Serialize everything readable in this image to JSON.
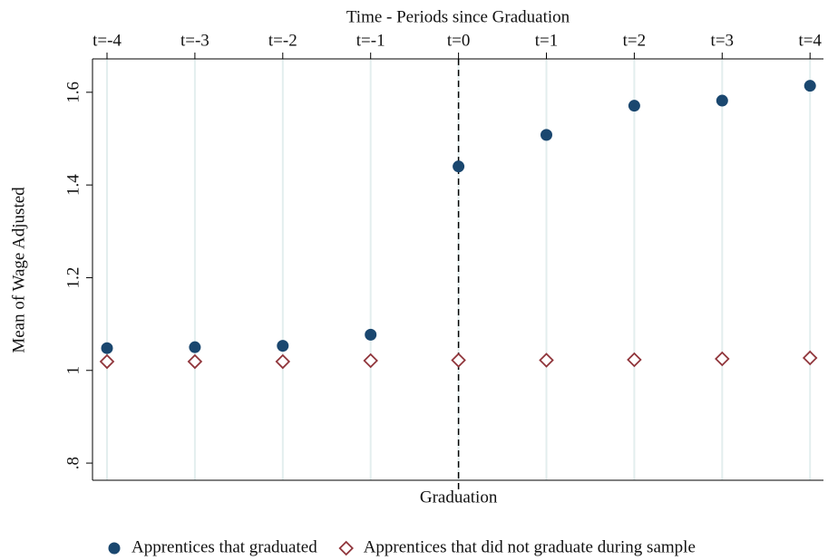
{
  "chart_data": {
    "type": "scatter",
    "x_label": "Time - Periods since Graduation",
    "y_label": "Mean of Wage Adjusted",
    "categories": [
      "t=-4",
      "t=-3",
      "t=-2",
      "t=-1",
      "t=0",
      "t=1",
      "t=2",
      "t=3",
      "t=4"
    ],
    "series": [
      {
        "name": "Apprentices that graduated",
        "color": "#1a476f",
        "marker": "circle",
        "filled": true,
        "values": [
          1.048,
          1.05,
          1.053,
          1.077,
          1.44,
          1.508,
          1.571,
          1.582,
          1.614
        ]
      },
      {
        "name": "Apprentices that did not graduate during sample",
        "color": "#90353b",
        "marker": "diamond",
        "filled": false,
        "values": [
          1.019,
          1.019,
          1.019,
          1.021,
          1.022,
          1.022,
          1.023,
          1.025,
          1.027
        ]
      }
    ],
    "ylim": [
      0.763,
      1.672
    ],
    "yticks": [
      {
        "value": 0.8,
        "label": ".8"
      },
      1,
      1.2,
      1.4,
      1.6
    ],
    "grid": true,
    "vline": {
      "category": "t=0",
      "label": "Graduation"
    },
    "legend": "bottom"
  }
}
